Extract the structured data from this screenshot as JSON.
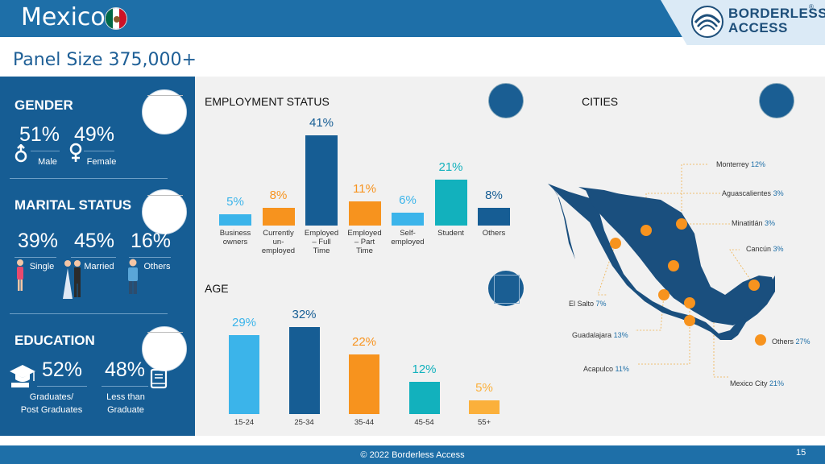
{
  "header": {
    "title": "Mexico",
    "logo_line1": "BORDERLESS",
    "logo_line2": "ACCESS",
    "logo_reg": "®"
  },
  "panel_size": "Panel Size 375,000+",
  "colors": {
    "primary": "#165d94",
    "light_blue": "#3bb4ea",
    "orange": "#f7931e",
    "teal": "#12b1bd",
    "header": "#1e6fa8"
  },
  "gender": {
    "title": "GENDER",
    "male_pct": "51%",
    "male_label": "Male",
    "female_pct": "49%",
    "female_label": "Female"
  },
  "marital": {
    "title": "MARITAL STATUS",
    "single_pct": "39%",
    "single_label": "Single",
    "married_pct": "45%",
    "married_label": "Married",
    "others_pct": "16%",
    "others_label": "Others"
  },
  "education": {
    "title": "EDUCATION",
    "grad_pct": "52%",
    "grad_label_1": "Graduates/",
    "grad_label_2": "Post Graduates",
    "less_pct": "48%",
    "less_label_1": "Less than",
    "less_label_2": "Graduate"
  },
  "employment": {
    "title": "EMPLOYMENT STATUS",
    "categories": [
      {
        "label": [
          "Business",
          "owners"
        ],
        "value": 5,
        "pct": "5%",
        "color": "#3bb4ea"
      },
      {
        "label": [
          "Currently",
          "un-",
          "employed"
        ],
        "value": 8,
        "pct": "8%",
        "color": "#f7931e"
      },
      {
        "label": [
          "Employed",
          "– Full",
          "Time"
        ],
        "value": 41,
        "pct": "41%",
        "color": "#165d94"
      },
      {
        "label": [
          "Employed",
          "– Part",
          "Time"
        ],
        "value": 11,
        "pct": "11%",
        "color": "#f7931e"
      },
      {
        "label": [
          "Self-",
          "employed"
        ],
        "value": 6,
        "pct": "6%",
        "color": "#3bb4ea"
      },
      {
        "label": [
          "Student"
        ],
        "value": 21,
        "pct": "21%",
        "color": "#12b1bd"
      },
      {
        "label": [
          "Others"
        ],
        "value": 8,
        "pct": "8%",
        "color": "#165d94"
      }
    ]
  },
  "age": {
    "title": "AGE",
    "categories": [
      {
        "label": "15-24",
        "value": 29,
        "pct": "29%",
        "color": "#3bb4ea"
      },
      {
        "label": "25-34",
        "value": 32,
        "pct": "32%",
        "color": "#165d94"
      },
      {
        "label": "35-44",
        "value": 22,
        "pct": "22%",
        "color": "#f7931e"
      },
      {
        "label": "45-54",
        "value": 12,
        "pct": "12%",
        "color": "#12b1bd"
      },
      {
        "label": "55+",
        "value": 5,
        "pct": "5%",
        "color": "#fbb03b"
      }
    ]
  },
  "cities": {
    "title": "CITIES",
    "items": [
      {
        "name": "Monterrey",
        "pct": "12%"
      },
      {
        "name": "Aguascalientes",
        "pct": "3%"
      },
      {
        "name": "Minatitlán",
        "pct": "3%"
      },
      {
        "name": "Cancún",
        "pct": "3%"
      },
      {
        "name": "El Salto",
        "pct": "7%"
      },
      {
        "name": "Guadalajara",
        "pct": "13%"
      },
      {
        "name": "Acapulco",
        "pct": "11%"
      },
      {
        "name": "Mexico City",
        "pct": "21%"
      },
      {
        "name": "Others",
        "pct": "27%"
      }
    ]
  },
  "footer": {
    "copyright": "© 2022 Borderless Access",
    "page": "15"
  }
}
